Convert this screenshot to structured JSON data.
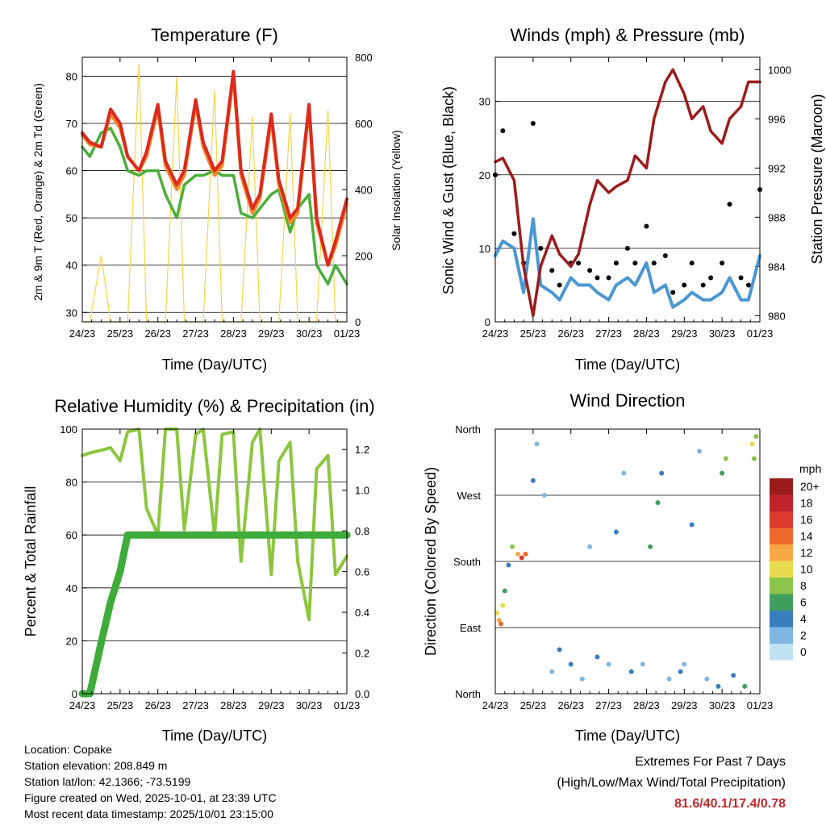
{
  "x_ticks": [
    "24/23",
    "25/23",
    "26/23",
    "27/23",
    "28/23",
    "29/23",
    "30/23",
    "01/23"
  ],
  "x_label": "Time (Day/UTC)",
  "panels": {
    "temperature": {
      "title": "Temperature (F)",
      "ylabel_left": "2m & 9m T (Red, Orange) & 2m Td (Green)",
      "ylabel_right": "Solar Insolation (Yellow)"
    },
    "winds": {
      "title": "Winds (mph) & Pressure (mb)",
      "ylabel_left": "Sonic Wind & Gust (Blue, Black)",
      "ylabel_right": "Station Pressure (Maroon)"
    },
    "humidity": {
      "title": "Relative Humidity (%) & Precipitation (in)",
      "ylabel_left": "Percent & Total Rainfall"
    },
    "direction": {
      "title": "Wind Direction",
      "ylabel_left": "Direction (Colored By Speed)",
      "legend_title": "mph",
      "legend_labels": [
        "20+",
        "18",
        "16",
        "14",
        "12",
        "10",
        "8",
        "6",
        "4",
        "2",
        "0"
      ],
      "legend_colors": [
        "#9b1c1c",
        "#c0232b",
        "#dc3a2e",
        "#ee6a2c",
        "#f7a845",
        "#e8dc4e",
        "#8dc44c",
        "#3f9e5c",
        "#3a7ebd",
        "#7fb6e2",
        "#bfe2f5"
      ]
    }
  },
  "chart_data": [
    {
      "type": "line",
      "title": "Temperature (F)",
      "xlabel": "Time (Day/UTC)",
      "ylabel": "2m & 9m T (Red, Orange) & 2m Td (Green)",
      "y2label": "Solar Insolation (Yellow)",
      "ylim": [
        28,
        84
      ],
      "y2lim": [
        0,
        800
      ],
      "yticks": [
        30,
        40,
        50,
        60,
        70,
        80
      ],
      "y2ticks": [
        0,
        200,
        400,
        600,
        800
      ],
      "x": [
        0,
        0.2,
        0.5,
        0.75,
        1.0,
        1.2,
        1.5,
        1.7,
        2.0,
        2.2,
        2.5,
        2.7,
        3.0,
        3.2,
        3.5,
        3.7,
        4.0,
        4.2,
        4.5,
        4.7,
        5.0,
        5.2,
        5.5,
        5.7,
        6.0,
        6.2,
        6.5,
        6.7,
        7.0
      ],
      "series": [
        {
          "name": "2m T",
          "color": "#dc2a1e",
          "values": [
            68,
            66,
            65,
            73,
            70,
            63,
            60,
            64,
            74,
            62,
            57,
            60,
            75,
            66,
            60,
            62,
            81,
            60,
            52,
            55,
            72,
            58,
            50,
            52,
            74,
            50,
            40,
            45,
            54
          ]
        },
        {
          "name": "9m T",
          "color": "#f08b2c",
          "values": [
            67.5,
            65.5,
            65,
            72,
            69,
            63,
            60,
            63,
            73,
            61,
            56,
            59,
            74,
            65,
            59,
            61,
            80,
            59,
            51,
            54,
            71,
            57,
            49,
            51,
            73,
            49,
            40,
            44,
            53
          ]
        },
        {
          "name": "2m Td",
          "color": "#4aae3a",
          "values": [
            65,
            63,
            68,
            69,
            65,
            60,
            59,
            60,
            60,
            55,
            50,
            57,
            59,
            59,
            60,
            59,
            59,
            51,
            50,
            52,
            55,
            56,
            47,
            52,
            55,
            40,
            36,
            40,
            36
          ]
        },
        {
          "name": "Solar Insolation",
          "color": "#f5d547",
          "axis": "right",
          "values": [
            0,
            0,
            200,
            0,
            0,
            0,
            780,
            0,
            0,
            0,
            740,
            0,
            0,
            0,
            700,
            0,
            0,
            0,
            620,
            0,
            0,
            0,
            630,
            0,
            0,
            0,
            640,
            0,
            0
          ]
        }
      ]
    },
    {
      "type": "line",
      "title": "Winds (mph) & Pressure (mb)",
      "xlabel": "Time (Day/UTC)",
      "ylabel": "Sonic Wind & Gust (Blue, Black)",
      "y2label": "Station Pressure (Maroon)",
      "ylim": [
        0,
        36
      ],
      "y2lim": [
        979.5,
        1001
      ],
      "yticks": [
        0,
        10,
        20,
        30
      ],
      "y2ticks": [
        980,
        984,
        988,
        992,
        996,
        1000
      ],
      "x": [
        0,
        0.2,
        0.5,
        0.75,
        1.0,
        1.2,
        1.5,
        1.7,
        2.0,
        2.2,
        2.5,
        2.7,
        3.0,
        3.2,
        3.5,
        3.7,
        4.0,
        4.2,
        4.5,
        4.7,
        5.0,
        5.2,
        5.5,
        5.7,
        6.0,
        6.2,
        6.5,
        6.7,
        7.0
      ],
      "series": [
        {
          "name": "Wind",
          "color": "#4b97d2",
          "values": [
            9,
            11,
            10,
            4,
            14,
            5,
            4,
            3,
            6,
            5,
            5,
            4,
            3,
            5,
            6,
            5,
            8,
            4,
            5,
            2,
            3,
            4,
            3,
            3,
            4,
            6,
            3,
            3,
            9
          ]
        },
        {
          "name": "Gust",
          "color": "#000000",
          "values": [
            20,
            26,
            12,
            8,
            27,
            10,
            7,
            5,
            8,
            8,
            7,
            6,
            6,
            8,
            10,
            8,
            13,
            8,
            9,
            4,
            5,
            8,
            5,
            6,
            8,
            16,
            6,
            5,
            18
          ]
        },
        {
          "name": "Station Pressure",
          "color": "#9b1c1c",
          "axis": "right",
          "values": [
            992.5,
            992.8,
            991,
            984,
            980,
            984,
            986.5,
            985,
            984,
            985,
            989,
            991,
            990,
            990.5,
            991,
            993,
            992,
            996,
            999,
            1000,
            998,
            996,
            997,
            995,
            994,
            996,
            997,
            999,
            999
          ]
        }
      ]
    },
    {
      "type": "line",
      "title": "Relative Humidity (%) & Precipitation (in)",
      "xlabel": "Time (Day/UTC)",
      "ylabel": "Percent & Total Rainfall",
      "ylim": [
        0,
        100
      ],
      "y2lim": [
        0,
        1.3
      ],
      "yticks": [
        0,
        20,
        40,
        60,
        80,
        100
      ],
      "y2ticks": [
        0.0,
        0.2,
        0.4,
        0.6,
        0.8,
        1.0,
        1.2
      ],
      "x": [
        0,
        0.2,
        0.5,
        0.75,
        1.0,
        1.2,
        1.5,
        1.7,
        2.0,
        2.2,
        2.5,
        2.7,
        3.0,
        3.2,
        3.5,
        3.7,
        4.0,
        4.2,
        4.5,
        4.7,
        5.0,
        5.2,
        5.5,
        5.7,
        6.0,
        6.2,
        6.5,
        6.7,
        7.0
      ],
      "series": [
        {
          "name": "Relative Humidity",
          "color": "#8cc63f",
          "values": [
            90,
            91,
            92,
            93,
            88,
            99,
            100,
            70,
            60,
            100,
            100,
            62,
            98,
            100,
            60,
            98,
            99,
            50,
            95,
            100,
            45,
            88,
            95,
            50,
            28,
            85,
            90,
            45,
            52
          ]
        },
        {
          "name": "Total Precipitation",
          "color": "#3fab3a",
          "axis": "right",
          "values": [
            0.0,
            0.0,
            0.25,
            0.45,
            0.6,
            0.78,
            0.78,
            0.78,
            0.78,
            0.78,
            0.78,
            0.78,
            0.78,
            0.78,
            0.78,
            0.78,
            0.78,
            0.78,
            0.78,
            0.78,
            0.78,
            0.78,
            0.78,
            0.78,
            0.78,
            0.78,
            0.78,
            0.78,
            0.78
          ]
        }
      ]
    },
    {
      "type": "scatter",
      "title": "Wind Direction",
      "xlabel": "Time (Day/UTC)",
      "ylabel": "Direction (Colored By Speed)",
      "ylim": [
        0,
        360
      ],
      "y_categories": [
        "North",
        "East",
        "South",
        "West",
        "North"
      ],
      "points": [
        [
          0.05,
          110,
          10
        ],
        [
          0.1,
          100,
          12
        ],
        [
          0.15,
          95,
          14
        ],
        [
          0.2,
          120,
          10
        ],
        [
          0.25,
          140,
          6
        ],
        [
          0.35,
          175,
          4
        ],
        [
          0.45,
          200,
          8
        ],
        [
          0.6,
          190,
          12
        ],
        [
          0.7,
          185,
          16
        ],
        [
          0.8,
          190,
          14
        ],
        [
          1.0,
          290,
          4
        ],
        [
          1.1,
          340,
          2
        ],
        [
          1.3,
          270,
          2
        ],
        [
          1.5,
          30,
          2
        ],
        [
          1.7,
          60,
          4
        ],
        [
          2.0,
          40,
          4
        ],
        [
          2.3,
          20,
          2
        ],
        [
          2.5,
          200,
          2
        ],
        [
          2.7,
          50,
          4
        ],
        [
          3.0,
          40,
          2
        ],
        [
          3.2,
          220,
          4
        ],
        [
          3.4,
          300,
          2
        ],
        [
          3.6,
          30,
          4
        ],
        [
          3.9,
          40,
          2
        ],
        [
          4.1,
          200,
          6
        ],
        [
          4.3,
          260,
          6
        ],
        [
          4.4,
          300,
          4
        ],
        [
          4.6,
          20,
          2
        ],
        [
          4.9,
          30,
          4
        ],
        [
          5.0,
          40,
          2
        ],
        [
          5.2,
          230,
          4
        ],
        [
          5.4,
          330,
          2
        ],
        [
          5.6,
          20,
          2
        ],
        [
          5.9,
          10,
          4
        ],
        [
          6.0,
          300,
          6
        ],
        [
          6.1,
          320,
          8
        ],
        [
          6.3,
          25,
          4
        ],
        [
          6.6,
          10,
          6
        ],
        [
          6.8,
          340,
          10
        ],
        [
          6.85,
          320,
          8
        ],
        [
          6.9,
          350,
          8
        ]
      ]
    }
  ],
  "info": {
    "location": "Location: Copake",
    "elevation": "Station elevation: 208.849 m",
    "latlon": "Station lat/lon: 42.1366; -73.5199",
    "created": "Figure created on Wed, 2025-10-01, at 23:39 UTC",
    "recent": "Most recent data timestamp: 2025/10/01 23:15:00"
  },
  "extremes": {
    "line1": "Extremes For Past 7 Days",
    "line2": "(High/Low/Max Wind/Total Precipitation)",
    "values": "81.6/40.1/17.4/0.78"
  }
}
